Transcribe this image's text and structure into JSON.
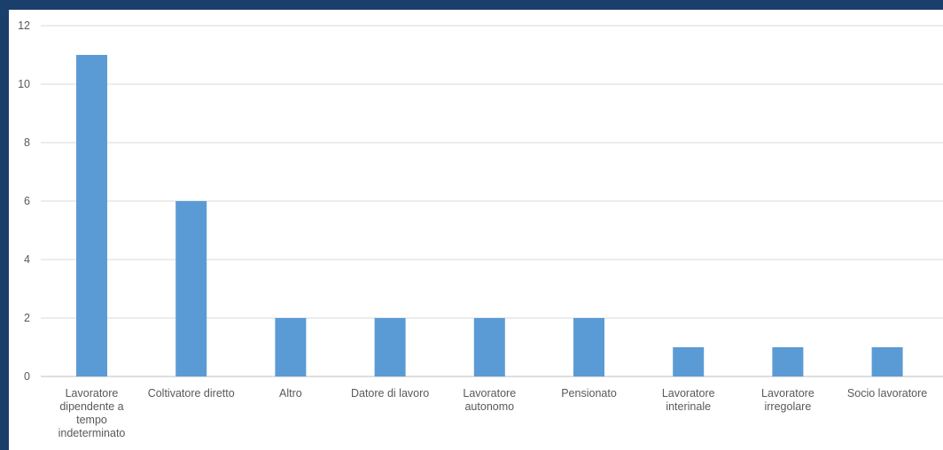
{
  "colors": {
    "frame": "#1a3f6b",
    "bar": "#5b9bd5",
    "text": "#595959",
    "grid": "#d9d9d9"
  },
  "chart_data": {
    "type": "bar",
    "title": "",
    "xlabel": "",
    "ylabel": "",
    "ylim": [
      0,
      12
    ],
    "yticks": [
      0,
      2,
      4,
      6,
      8,
      10,
      12
    ],
    "grid": true,
    "legend": "none",
    "categories": [
      "Lavoratore dipendente a tempo indeterminato",
      "Coltivatore diretto",
      "Altro",
      "Datore di lavoro",
      "Lavoratore autonomo",
      "Pensionato",
      "Lavoratore interinale",
      "Lavoratore irregolare",
      "Socio lavoratore"
    ],
    "category_label_lines": [
      [
        "Lavoratore",
        "dipendente a",
        "tempo",
        "indeterminato"
      ],
      [
        "Coltivatore diretto"
      ],
      [
        "Altro"
      ],
      [
        "Datore di lavoro"
      ],
      [
        "Lavoratore",
        "autonomo"
      ],
      [
        "Pensionato"
      ],
      [
        "Lavoratore",
        "interinale"
      ],
      [
        "Lavoratore",
        "irregolare"
      ],
      [
        "Socio lavoratore"
      ]
    ],
    "values": [
      11,
      6,
      2,
      2,
      2,
      2,
      1,
      1,
      1
    ]
  }
}
